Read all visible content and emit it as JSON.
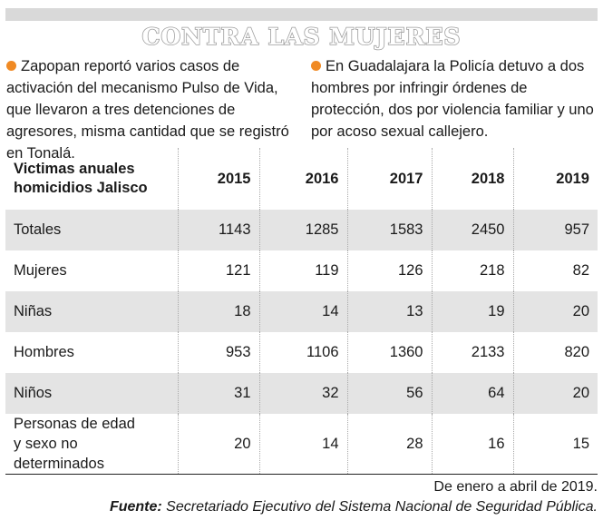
{
  "title": "CONTRA LAS MUJERES",
  "intro": {
    "left": "Zapopan reportó varios casos de activación del mecanismo Pulso de Vida, que llevaron a tres detenciones de agresores, misma cantidad que se registró en Tonalá.",
    "right": "En Guadalajara la Policía detuvo a dos hombres por infringir órdenes de protección, dos por violencia familiar y uno por acoso sexual callejero."
  },
  "colors": {
    "bullet": "#f08a24",
    "shade": "#e4e4e4",
    "title_stroke": "#9e9e9e"
  },
  "table": {
    "header_line1": "Victimas anuales",
    "header_line2": "homicidios Jalisco",
    "years": [
      "2015",
      "2016",
      "2017",
      "2018",
      "2019"
    ],
    "rows": [
      {
        "label": "Totales",
        "values": [
          "1143",
          "1285",
          "1583",
          "2450",
          "957"
        ]
      },
      {
        "label": "Mujeres",
        "values": [
          "121",
          "119",
          "126",
          "218",
          "82"
        ]
      },
      {
        "label": "Niñas",
        "values": [
          "18",
          "14",
          "13",
          "19",
          "20"
        ]
      },
      {
        "label": "Hombres",
        "values": [
          "953",
          "1106",
          "1360",
          "2133",
          "820"
        ]
      },
      {
        "label": "Niños",
        "values": [
          "31",
          "32",
          "56",
          "64",
          "20"
        ]
      },
      {
        "label_line1": "Personas de edad",
        "label_line2": "y sexo no determinados",
        "values": [
          "20",
          "14",
          "28",
          "16",
          "15"
        ]
      }
    ]
  },
  "footer": {
    "period": "De enero a abril de 2019.",
    "source_label": "Fuente:",
    "source_text": " Secretariado Ejecutivo del Sistema Nacional de Seguridad Pública."
  }
}
